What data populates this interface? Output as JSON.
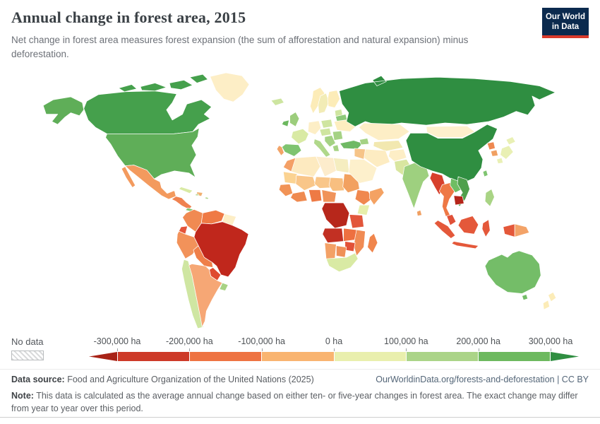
{
  "logo": {
    "line1": "Our World",
    "line2": "in Data"
  },
  "header": {
    "title": "Annual change in forest area, 2015",
    "subtitle": "Net change in forest area measures forest expansion (the sum of afforestation and natural expansion) minus deforestation."
  },
  "legend": {
    "no_data_label": "No data",
    "tick_labels": [
      "-300,000 ha",
      "-200,000 ha",
      "-100,000 ha",
      "0 ha",
      "100,000 ha",
      "200,000 ha",
      "300,000 ha"
    ],
    "segment_colors": [
      "#a82317",
      "#cd3a28",
      "#ee7342",
      "#f9b470",
      "#e9efad",
      "#abd488",
      "#6db95f",
      "#2f8e41"
    ]
  },
  "footer": {
    "source_label": "Data source:",
    "source_text": "Food and Agriculture Organization of the United Nations (2025)",
    "link_text": "OurWorldinData.org/forests-and-deforestation | CC BY",
    "note_label": "Note:",
    "note_text": "This data is calculated as the average annual change based on either ten- or five-year changes in forest area. The exact change may differ from year to year over this period."
  },
  "chart_data": {
    "type": "choropleth",
    "title": "Annual change in forest area, 2015",
    "year": 2015,
    "unit": "ha",
    "metric": "Net annual change in forest area (expansion minus deforestation)",
    "scale_ticks": [
      -300000,
      -200000,
      -100000,
      0,
      100000,
      200000,
      300000
    ],
    "no_data_style": "diagonal-hatch",
    "regions": [
      {
        "id": "canada",
        "name": "Canada",
        "color": "#45a04c",
        "band": "200,000 to 300,000 ha"
      },
      {
        "id": "usa",
        "name": "United States",
        "color": "#5fae58",
        "band": "200,000 to 300,000 ha"
      },
      {
        "id": "alaska",
        "name": "United States (Alaska)",
        "color": "#5fae58",
        "band": "200,000 to 300,000 ha"
      },
      {
        "id": "greenland",
        "name": "Greenland",
        "color": "#fdeec6",
        "band": "0 to 100,000 ha"
      },
      {
        "id": "mexico",
        "name": "Mexico",
        "color": "#f39a5e",
        "band": "-100,000 to 0 ha"
      },
      {
        "id": "central-america",
        "name": "Central America",
        "color": "#ef8250",
        "band": "-200,000 to -100,000 ha"
      },
      {
        "id": "panama",
        "name": "Panama and Costa Rica",
        "color": "#7fc470",
        "band": "0 to 100,000 ha"
      },
      {
        "id": "cuba",
        "name": "Cuba",
        "color": "#d9eaa4",
        "band": "0 to 100,000 ha"
      },
      {
        "id": "hispaniola",
        "name": "Haiti and Dominican Republic",
        "color": "#f0b070",
        "band": "-100,000 to 0 ha"
      },
      {
        "id": "caribbean-islands",
        "name": "Caribbean islands",
        "color": "#a8d284",
        "band": "0 to 100,000 ha"
      },
      {
        "id": "colombia",
        "name": "Colombia",
        "color": "#f08a52",
        "band": "-100,000 to 0 ha"
      },
      {
        "id": "venezuela",
        "name": "Venezuela",
        "color": "#ef7a45",
        "band": "-200,000 to -100,000 ha"
      },
      {
        "id": "guianas",
        "name": "Guyana and Suriname",
        "color": "#fdeec6",
        "band": "0 to 100,000 ha"
      },
      {
        "id": "ecuador",
        "name": "Ecuador",
        "color": "#e4543a",
        "band": "-300,000 to -200,000 ha"
      },
      {
        "id": "peru",
        "name": "Peru",
        "color": "#f2925a",
        "band": "-100,000 to 0 ha"
      },
      {
        "id": "bolivia",
        "name": "Bolivia",
        "color": "#ef7f49",
        "band": "-200,000 to -100,000 ha"
      },
      {
        "id": "brazil",
        "name": "Brazil",
        "color": "#c0271c",
        "band": "less than -300,000 ha"
      },
      {
        "id": "paraguay",
        "name": "Paraguay",
        "color": "#df4a2f",
        "band": "-300,000 to -200,000 ha"
      },
      {
        "id": "chile",
        "name": "Chile",
        "color": "#cfe6a2",
        "band": "0 to 100,000 ha"
      },
      {
        "id": "argentina",
        "name": "Argentina",
        "color": "#f6a775",
        "band": "-100,000 to 0 ha"
      },
      {
        "id": "uruguay",
        "name": "Uruguay",
        "color": "#a8d284",
        "band": "100,000 to 200,000 ha"
      },
      {
        "id": "iceland",
        "name": "Iceland",
        "color": "#cde5a0",
        "band": "0 to 100,000 ha"
      },
      {
        "id": "united-kingdom",
        "name": "United Kingdom",
        "color": "#9ccd7c",
        "band": "100,000 to 200,000 ha"
      },
      {
        "id": "ireland",
        "name": "Ireland",
        "color": "#6cb85f",
        "band": "200,000 to 300,000 ha"
      },
      {
        "id": "norway",
        "name": "Norway",
        "color": "#fcecb8",
        "band": "0 to 100,000 ha"
      },
      {
        "id": "sweden",
        "name": "Sweden",
        "color": "#f2ecb6",
        "band": "0 to 100,000 ha"
      },
      {
        "id": "finland",
        "name": "Finland",
        "color": "#fcecb8",
        "band": "0 to 100,000 ha"
      },
      {
        "id": "baltics",
        "name": "Baltic states",
        "color": "#cfe5a0",
        "band": "0 to 100,000 ha"
      },
      {
        "id": "belarus",
        "name": "Belarus",
        "color": "#8cc979",
        "band": "100,000 to 200,000 ha"
      },
      {
        "id": "ukraine",
        "name": "Ukraine",
        "color": "#fdeec0",
        "band": "0 to 100,000 ha"
      },
      {
        "id": "poland",
        "name": "Poland",
        "color": "#cfe5a0",
        "band": "0 to 100,000 ha"
      },
      {
        "id": "germany-central",
        "name": "Germany",
        "color": "#fdeec6",
        "band": "0 to 100,000 ha"
      },
      {
        "id": "france",
        "name": "France",
        "color": "#d9eaa4",
        "band": "0 to 100,000 ha"
      },
      {
        "id": "spain",
        "name": "Spain",
        "color": "#7fc470",
        "band": "200,000 to 300,000 ha"
      },
      {
        "id": "portugal",
        "name": "Portugal",
        "color": "#f2a468",
        "band": "-100,000 to 0 ha"
      },
      {
        "id": "italy",
        "name": "Italy",
        "color": "#b0d88a",
        "band": "100,000 to 200,000 ha"
      },
      {
        "id": "central-europe",
        "name": "Central Europe",
        "color": "#cfe5a0",
        "band": "0 to 100,000 ha"
      },
      {
        "id": "balkans",
        "name": "Balkans",
        "color": "#a5d284",
        "band": "100,000 to 200,000 ha"
      },
      {
        "id": "romania-bulgaria",
        "name": "Romania and Bulgaria",
        "color": "#a5d284",
        "band": "100,000 to 200,000 ha"
      },
      {
        "id": "greece",
        "name": "Greece",
        "color": "#a5d284",
        "band": "100,000 to 200,000 ha"
      },
      {
        "id": "turkey",
        "name": "Turkey",
        "color": "#6fb964",
        "band": "200,000 to 300,000 ha"
      },
      {
        "id": "caucasus",
        "name": "Caucasus",
        "color": "#a5d284",
        "band": "100,000 to 200,000 ha"
      },
      {
        "id": "morocco",
        "name": "Morocco",
        "color": "#f4a066",
        "band": "-100,000 to 0 ha"
      },
      {
        "id": "algeria",
        "name": "Algeria",
        "color": "#fdeac0",
        "band": "0 to 100,000 ha"
      },
      {
        "id": "libya",
        "name": "Libya",
        "color": "#fdeccc",
        "band": "0 to 100,000 ha"
      },
      {
        "id": "egypt",
        "name": "Egypt",
        "color": "#f5edc0",
        "band": "0 to 100,000 ha"
      },
      {
        "id": "mauritania",
        "name": "Mauritania",
        "color": "#fbd392",
        "band": "-100,000 to 0 ha"
      },
      {
        "id": "mali",
        "name": "Mali",
        "color": "#f9c689",
        "band": "-100,000 to 0 ha"
      },
      {
        "id": "niger",
        "name": "Niger",
        "color": "#f9c689",
        "band": "-100,000 to 0 ha"
      },
      {
        "id": "chad",
        "name": "Chad",
        "color": "#f8bf80",
        "band": "-100,000 to 0 ha"
      },
      {
        "id": "sudan",
        "name": "Sudan",
        "color": "#f2a160",
        "band": "-100,000 to 0 ha"
      },
      {
        "id": "senegal-guinea",
        "name": "Senegal and Guinea",
        "color": "#f19356",
        "band": "-100,000 to 0 ha"
      },
      {
        "id": "ivory-ghana",
        "name": "Ivory Coast and Ghana",
        "color": "#ef8a50",
        "band": "-200,000 to -100,000 ha"
      },
      {
        "id": "nigeria",
        "name": "Nigeria",
        "color": "#ee7a45",
        "band": "-200,000 to -100,000 ha"
      },
      {
        "id": "cameroon-car",
        "name": "Cameroon and Central African Republic",
        "color": "#f0935a",
        "band": "-100,000 to 0 ha"
      },
      {
        "id": "ethiopia",
        "name": "Ethiopia",
        "color": "#f0884f",
        "band": "-100,000 to 0 ha"
      },
      {
        "id": "somalia",
        "name": "Somalia",
        "color": "#f4a263",
        "band": "-100,000 to 0 ha"
      },
      {
        "id": "kenya",
        "name": "Kenya",
        "color": "#e7efab",
        "band": "0 to 100,000 ha"
      },
      {
        "id": "drc",
        "name": "Democratic Republic of Congo",
        "color": "#b7271b",
        "band": "less than -300,000 ha"
      },
      {
        "id": "tanzania",
        "name": "Tanzania",
        "color": "#e2563b",
        "band": "-300,000 to -200,000 ha"
      },
      {
        "id": "angola",
        "name": "Angola",
        "color": "#c23023",
        "band": "less than -300,000 ha"
      },
      {
        "id": "zambia",
        "name": "Zambia",
        "color": "#ee7040",
        "band": "-200,000 to -100,000 ha"
      },
      {
        "id": "mozambique",
        "name": "Mozambique",
        "color": "#f08b54",
        "band": "-100,000 to 0 ha"
      },
      {
        "id": "zimbabwe",
        "name": "Zimbabwe",
        "color": "#e25138",
        "band": "-300,000 to -200,000 ha"
      },
      {
        "id": "namibia",
        "name": "Namibia",
        "color": "#f3a166",
        "band": "-100,000 to 0 ha"
      },
      {
        "id": "botswana",
        "name": "Botswana",
        "color": "#ef9058",
        "band": "-200,000 to -100,000 ha"
      },
      {
        "id": "south-africa",
        "name": "South Africa",
        "color": "#d9eaa4",
        "band": "0 to 100,000 ha"
      },
      {
        "id": "madagascar",
        "name": "Madagascar",
        "color": "#f0854c",
        "band": "-100,000 to 0 ha"
      },
      {
        "id": "russia",
        "name": "Russia",
        "color": "#2f8e41",
        "band": "more than 300,000 ha"
      },
      {
        "id": "kazakhstan",
        "name": "Kazakhstan",
        "color": "#fdeec6",
        "band": "0 to 100,000 ha"
      },
      {
        "id": "central-asia",
        "name": "Uzbekistan and Turkmenistan",
        "color": "#f2e8b0",
        "band": "0 to 100,000 ha"
      },
      {
        "id": "iran",
        "name": "Iran",
        "color": "#fdecc2",
        "band": "0 to 100,000 ha"
      },
      {
        "id": "iraq",
        "name": "Iraq",
        "color": "#f6c488",
        "band": "-100,000 to 0 ha"
      },
      {
        "id": "arabia",
        "name": "Saudi Arabia",
        "color": "#fdf0cc",
        "band": "0 to 100,000 ha"
      },
      {
        "id": "afghanistan",
        "name": "Afghanistan",
        "color": "#fdeec6",
        "band": "0 to 100,000 ha"
      },
      {
        "id": "pakistan",
        "name": "Pakistan",
        "color": "#d9e6a0",
        "band": "0 to 100,000 ha"
      },
      {
        "id": "india",
        "name": "India",
        "color": "#9ed07f",
        "band": "100,000 to 200,000 ha"
      },
      {
        "id": "sri-lanka",
        "name": "Sri Lanka",
        "color": "#f0a062",
        "band": "-100,000 to 0 ha"
      },
      {
        "id": "mongolia",
        "name": "Mongolia",
        "color": "#fdf0cc",
        "band": "0 to 100,000 ha"
      },
      {
        "id": "china",
        "name": "China",
        "color": "#2f8e41",
        "band": "more than 300,000 ha"
      },
      {
        "id": "north-korea",
        "name": "North Korea",
        "color": "#ee8850",
        "band": "-200,000 to -100,000 ha"
      },
      {
        "id": "south-korea",
        "name": "South Korea",
        "color": "#f0a062",
        "band": "-100,000 to 0 ha"
      },
      {
        "id": "japan",
        "name": "Japan",
        "color": "#e9f0b4",
        "band": "0 to 100,000 ha"
      },
      {
        "id": "taiwan",
        "name": "Taiwan",
        "color": "#7fc470",
        "band": "200,000 to 300,000 ha"
      },
      {
        "id": "myanmar",
        "name": "Myanmar",
        "color": "#d7402c",
        "band": "-300,000 to -200,000 ha"
      },
      {
        "id": "thailand",
        "name": "Thailand",
        "color": "#ee7845",
        "band": "-200,000 to -100,000 ha"
      },
      {
        "id": "laos",
        "name": "Laos",
        "color": "#6fbd63",
        "band": "200,000 to 300,000 ha"
      },
      {
        "id": "vietnam",
        "name": "Vietnam",
        "color": "#4fa04c",
        "band": "200,000 to 300,000 ha"
      },
      {
        "id": "cambodia",
        "name": "Cambodia",
        "color": "#b5251a",
        "band": "less than -300,000 ha"
      },
      {
        "id": "malaysia",
        "name": "Malaysia",
        "color": "#e05038",
        "band": "-300,000 to -200,000 ha"
      },
      {
        "id": "indonesia",
        "name": "Indonesia",
        "color": "#e4583a",
        "band": "-300,000 to -200,000 ha"
      },
      {
        "id": "papua-new-guinea",
        "name": "Papua New Guinea",
        "color": "#f3a368",
        "band": "-100,000 to 0 ha"
      },
      {
        "id": "philippines",
        "name": "Philippines",
        "color": "#a9d485",
        "band": "100,000 to 200,000 ha"
      },
      {
        "id": "australia",
        "name": "Australia",
        "color": "#74bd68",
        "band": "200,000 to 300,000 ha"
      },
      {
        "id": "new-zealand",
        "name": "New Zealand",
        "color": "#fcecb8",
        "band": "0 to 100,000 ha"
      }
    ]
  }
}
